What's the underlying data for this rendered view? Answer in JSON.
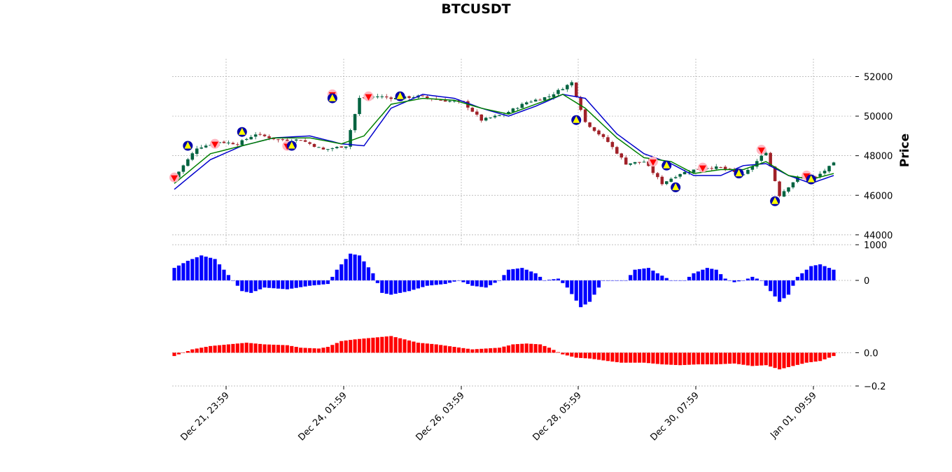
{
  "chart_data": {
    "type": "candlestick",
    "title": "BTCUSDT",
    "ylabel": "Price",
    "x_tick_labels": [
      "Dec 21, 23:59",
      "Dec 24, 01:59",
      "Dec 26, 03:59",
      "Dec 28, 05:59",
      "Dec 30, 07:59",
      "Jan 01, 09:59"
    ],
    "price_panel": {
      "ylim": [
        43500,
        52900
      ],
      "yticks": [
        44000,
        46000,
        48000,
        50000,
        52000
      ],
      "close_path": [
        [
          0,
          46900
        ],
        [
          5,
          48400
        ],
        [
          10,
          48700
        ],
        [
          14,
          48600
        ],
        [
          18,
          49100
        ],
        [
          23,
          48800
        ],
        [
          28,
          48800
        ],
        [
          33,
          48300
        ],
        [
          38,
          48500
        ],
        [
          41,
          50900
        ],
        [
          45,
          51000
        ],
        [
          49,
          50900
        ],
        [
          54,
          51000
        ],
        [
          59,
          50800
        ],
        [
          64,
          50700
        ],
        [
          68,
          49800
        ],
        [
          73,
          50100
        ],
        [
          78,
          50700
        ],
        [
          83,
          51000
        ],
        [
          88,
          51700
        ],
        [
          91,
          49700
        ],
        [
          96,
          48700
        ],
        [
          100,
          47600
        ],
        [
          104,
          47700
        ],
        [
          108,
          46600
        ],
        [
          112,
          47100
        ],
        [
          117,
          47400
        ],
        [
          121,
          47400
        ],
        [
          126,
          47000
        ],
        [
          131,
          48200
        ],
        [
          134,
          46000
        ],
        [
          138,
          46900
        ],
        [
          142,
          46900
        ],
        [
          146,
          47600
        ]
      ],
      "ma_fast": [
        [
          0,
          46600
        ],
        [
          8,
          48100
        ],
        [
          15,
          48500
        ],
        [
          22,
          48900
        ],
        [
          30,
          48900
        ],
        [
          37,
          48600
        ],
        [
          42,
          49000
        ],
        [
          48,
          50600
        ],
        [
          55,
          50900
        ],
        [
          62,
          50800
        ],
        [
          68,
          50400
        ],
        [
          74,
          50100
        ],
        [
          80,
          50600
        ],
        [
          86,
          51100
        ],
        [
          91,
          50400
        ],
        [
          98,
          48900
        ],
        [
          104,
          47900
        ],
        [
          110,
          47700
        ],
        [
          115,
          47100
        ],
        [
          121,
          47300
        ],
        [
          126,
          47300
        ],
        [
          131,
          47700
        ],
        [
          136,
          47000
        ],
        [
          141,
          46800
        ],
        [
          146,
          47100
        ]
      ],
      "ma_slow": [
        [
          0,
          46300
        ],
        [
          8,
          47800
        ],
        [
          15,
          48500
        ],
        [
          22,
          48900
        ],
        [
          30,
          49000
        ],
        [
          37,
          48600
        ],
        [
          42,
          48500
        ],
        [
          48,
          50400
        ],
        [
          55,
          51100
        ],
        [
          62,
          50900
        ],
        [
          68,
          50400
        ],
        [
          74,
          50000
        ],
        [
          80,
          50500
        ],
        [
          86,
          51100
        ],
        [
          91,
          50900
        ],
        [
          98,
          49100
        ],
        [
          104,
          48100
        ],
        [
          110,
          47600
        ],
        [
          115,
          47000
        ],
        [
          121,
          47000
        ],
        [
          126,
          47500
        ],
        [
          131,
          47600
        ],
        [
          136,
          47000
        ],
        [
          141,
          46600
        ],
        [
          146,
          47000
        ]
      ],
      "buy_markers": [
        {
          "i": 3,
          "price": 48500
        },
        {
          "i": 15,
          "price": 49200
        },
        {
          "i": 26,
          "price": 48500
        },
        {
          "i": 35,
          "price": 50900
        },
        {
          "i": 50,
          "price": 51000
        },
        {
          "i": 89,
          "price": 49800
        },
        {
          "i": 109,
          "price": 47500
        },
        {
          "i": 111,
          "price": 46400
        },
        {
          "i": 125,
          "price": 47100
        },
        {
          "i": 133,
          "price": 45700
        },
        {
          "i": 141,
          "price": 46800
        }
      ],
      "sell_markers": [
        {
          "i": 0,
          "price": 46900
        },
        {
          "i": 9,
          "price": 48600
        },
        {
          "i": 25,
          "price": 48500
        },
        {
          "i": 35,
          "price": 51100
        },
        {
          "i": 43,
          "price": 51000
        },
        {
          "i": 106,
          "price": 47700
        },
        {
          "i": 117,
          "price": 47400
        },
        {
          "i": 130,
          "price": 48300
        },
        {
          "i": 140,
          "price": 47000
        }
      ]
    },
    "histogram_panel": {
      "ylim": [
        -1000,
        1000
      ],
      "yticks": [
        1000,
        0
      ],
      "color": "#0000ff",
      "path": [
        [
          0,
          350
        ],
        [
          3,
          550
        ],
        [
          6,
          700
        ],
        [
          9,
          600
        ],
        [
          11,
          300
        ],
        [
          13,
          0
        ],
        [
          15,
          -300
        ],
        [
          17,
          -350
        ],
        [
          20,
          -200
        ],
        [
          25,
          -250
        ],
        [
          30,
          -150
        ],
        [
          34,
          -100
        ],
        [
          36,
          300
        ],
        [
          39,
          750
        ],
        [
          41,
          700
        ],
        [
          44,
          200
        ],
        [
          46,
          -350
        ],
        [
          48,
          -400
        ],
        [
          52,
          -300
        ],
        [
          56,
          -150
        ],
        [
          60,
          -100
        ],
        [
          63,
          0
        ],
        [
          66,
          -150
        ],
        [
          69,
          -200
        ],
        [
          72,
          0
        ],
        [
          74,
          300
        ],
        [
          77,
          350
        ],
        [
          80,
          200
        ],
        [
          82,
          0
        ],
        [
          85,
          50
        ],
        [
          87,
          -200
        ],
        [
          90,
          -750
        ],
        [
          92,
          -600
        ],
        [
          95,
          0
        ],
        [
          100,
          0
        ],
        [
          102,
          300
        ],
        [
          105,
          350
        ],
        [
          107,
          200
        ],
        [
          110,
          0
        ],
        [
          113,
          0
        ],
        [
          115,
          200
        ],
        [
          118,
          350
        ],
        [
          120,
          300
        ],
        [
          122,
          50
        ],
        [
          124,
          -50
        ],
        [
          126,
          0
        ],
        [
          128,
          100
        ],
        [
          130,
          0
        ],
        [
          132,
          -300
        ],
        [
          134,
          -600
        ],
        [
          136,
          -400
        ],
        [
          138,
          100
        ],
        [
          141,
          400
        ],
        [
          143,
          450
        ],
        [
          146,
          300
        ]
      ]
    },
    "oscillator_panel": {
      "ylim": [
        -0.2,
        0.22
      ],
      "yticks": [
        0.0,
        -0.2
      ],
      "ytick_labels": [
        "0.0",
        "−0.2"
      ],
      "color": "#ff0000",
      "path": [
        [
          0,
          -0.02
        ],
        [
          4,
          0.02
        ],
        [
          8,
          0.04
        ],
        [
          12,
          0.05
        ],
        [
          14,
          0.055
        ],
        [
          16,
          0.06
        ],
        [
          20,
          0.05
        ],
        [
          25,
          0.045
        ],
        [
          28,
          0.03
        ],
        [
          32,
          0.025
        ],
        [
          34,
          0.035
        ],
        [
          37,
          0.07
        ],
        [
          40,
          0.08
        ],
        [
          44,
          0.09
        ],
        [
          48,
          0.1
        ],
        [
          51,
          0.08
        ],
        [
          54,
          0.06
        ],
        [
          58,
          0.05
        ],
        [
          62,
          0.035
        ],
        [
          66,
          0.02
        ],
        [
          69,
          0.025
        ],
        [
          72,
          0.03
        ],
        [
          75,
          0.05
        ],
        [
          78,
          0.055
        ],
        [
          81,
          0.05
        ],
        [
          83,
          0.03
        ],
        [
          86,
          -0.01
        ],
        [
          89,
          -0.03
        ],
        [
          92,
          -0.035
        ],
        [
          96,
          -0.05
        ],
        [
          99,
          -0.06
        ],
        [
          104,
          -0.06
        ],
        [
          108,
          -0.07
        ],
        [
          112,
          -0.075
        ],
        [
          116,
          -0.07
        ],
        [
          120,
          -0.07
        ],
        [
          124,
          -0.065
        ],
        [
          128,
          -0.08
        ],
        [
          131,
          -0.075
        ],
        [
          134,
          -0.1
        ],
        [
          137,
          -0.08
        ],
        [
          140,
          -0.06
        ],
        [
          143,
          -0.05
        ],
        [
          146,
          -0.02
        ]
      ]
    },
    "colors": {
      "candle_up": "#006340",
      "candle_down": "#a02128",
      "ma_fast": "#008000",
      "ma_slow": "#0000cc",
      "buy_marker_fill": "#ffff00",
      "buy_marker_ring": "#0000aa",
      "sell_marker_fill": "#ff0000",
      "sell_marker_ring": "#ffb6c1"
    }
  }
}
